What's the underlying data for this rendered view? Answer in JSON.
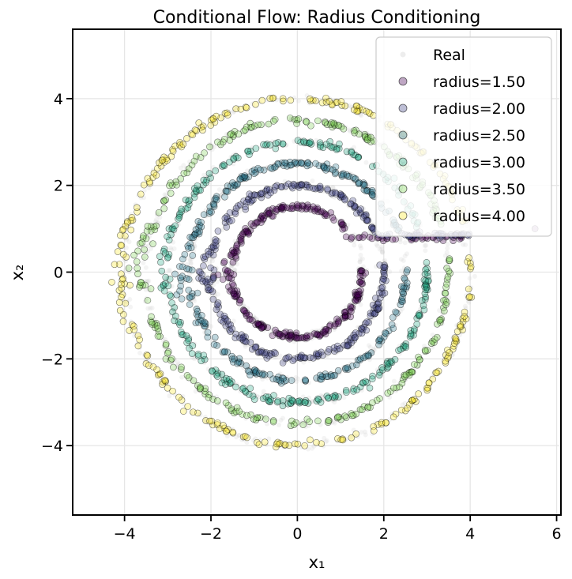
{
  "chart_data": {
    "type": "scatter",
    "title": "Conditional Flow: Radius Conditioning",
    "xlabel": "x₁",
    "ylabel": "x₂",
    "xlim": [
      -5.2,
      6.1
    ],
    "ylim": [
      -5.6,
      5.6
    ],
    "xticks": [
      -4,
      -2,
      0,
      2,
      4,
      6
    ],
    "yticks": [
      -4,
      -2,
      0,
      2,
      4
    ],
    "xtick_labels": [
      "−4",
      "−2",
      "0",
      "2",
      "4",
      "6"
    ],
    "ytick_labels": [
      "−4",
      "−2",
      "0",
      "2",
      "4"
    ],
    "grid": true,
    "legend_position": "top-right",
    "real": {
      "name": "Real",
      "color": "#cccccc",
      "radii": [
        1.5,
        2.0,
        2.5,
        3.0,
        3.5,
        4.0
      ]
    },
    "series": [
      {
        "name": "radius=1.50",
        "radius": 1.5,
        "color": "#440154",
        "gap_arc_deg": [
          5,
          42
        ],
        "tail_y": 0.8,
        "tail_x_end": 3.8,
        "tail_points": [
          5.5,
          1.0
        ]
      },
      {
        "name": "radius=2.00",
        "radius": 2.0,
        "color": "#414487",
        "gap_arc_deg": [
          5,
          25
        ],
        "tail_y": 0.85,
        "tail_x_end": 4.0
      },
      {
        "name": "radius=2.50",
        "radius": 2.5,
        "color": "#2a788e",
        "gap_arc_deg": [
          5,
          22
        ]
      },
      {
        "name": "radius=3.00",
        "radius": 3.0,
        "color": "#22a884",
        "gap_arc_deg": [
          5,
          20
        ]
      },
      {
        "name": "radius=3.50",
        "radius": 3.5,
        "color": "#7ad151",
        "gap_arc_deg": [
          5,
          18
        ]
      },
      {
        "name": "radius=4.00",
        "radius": 4.0,
        "color": "#fde725",
        "gap_arc_deg": [
          5,
          17
        ]
      }
    ]
  }
}
